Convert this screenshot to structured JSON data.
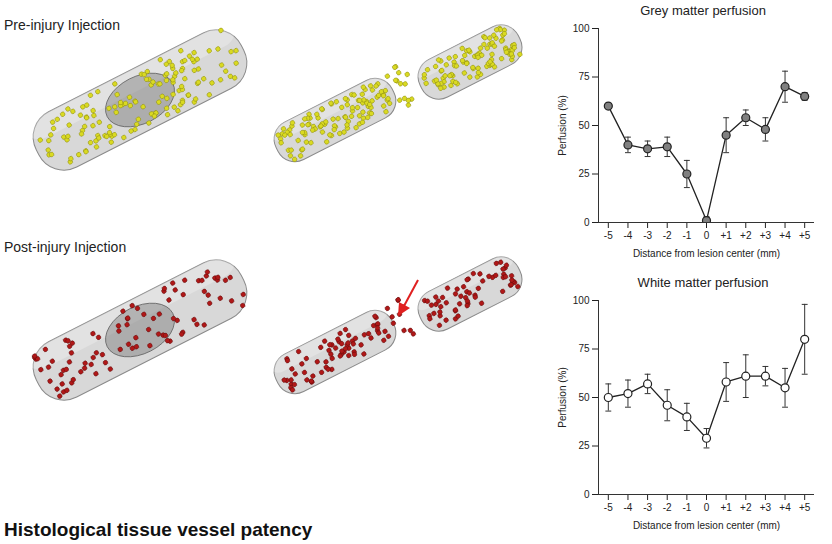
{
  "chart_data": [
    {
      "type": "line",
      "title": "Grey matter perfusion",
      "x_label": "Distance from lesion center (mm)",
      "y_label": "Perfusion (%)",
      "x": [
        -5,
        -4,
        -3,
        -2,
        -1,
        0,
        1,
        2,
        3,
        4,
        5
      ],
      "values": [
        60,
        40,
        38,
        39,
        25,
        1,
        45,
        54,
        48,
        70,
        65
      ],
      "errors": [
        1,
        4,
        4,
        5,
        7,
        2,
        9,
        4,
        6,
        8,
        2
      ],
      "color": "#808080",
      "marker": "circle",
      "xlim": [
        -5.5,
        5.5
      ],
      "xticks": [
        -5,
        -4,
        -3,
        -2,
        -1,
        0,
        {
          "value": 1,
          "label": "+1"
        },
        {
          "value": 2,
          "label": "+2"
        },
        {
          "value": 3,
          "label": "+3"
        },
        {
          "value": 4,
          "label": "+4"
        },
        {
          "value": 5,
          "label": "+5"
        }
      ],
      "ylim": [
        0,
        100
      ],
      "yticks": [
        0,
        25,
        50,
        75,
        100
      ]
    },
    {
      "type": "line",
      "title": "White matter perfusion",
      "x_label": "Distance from lesion center (mm)",
      "y_label": "Perfusion (%)",
      "x": [
        -5,
        -4,
        -3,
        -2,
        -1,
        0,
        1,
        2,
        3,
        4,
        5
      ],
      "values": [
        50,
        52,
        57,
        46,
        40,
        29,
        58,
        61,
        61,
        55,
        80
      ],
      "errors": [
        7,
        7,
        5,
        8,
        7,
        5,
        10,
        11,
        5,
        10,
        18
      ],
      "color": "#ffffff",
      "marker": "circle",
      "xlim": [
        -5.5,
        5.5
      ],
      "xticks": [
        -5,
        -4,
        -3,
        -2,
        -1,
        0,
        {
          "value": 1,
          "label": "+1"
        },
        {
          "value": 2,
          "label": "+2"
        },
        {
          "value": 3,
          "label": "+3"
        },
        {
          "value": 4,
          "label": "+4"
        },
        {
          "value": 5,
          "label": "+5"
        }
      ],
      "ylim": [
        0,
        100
      ],
      "yticks": [
        0,
        25,
        50,
        75,
        100
      ]
    }
  ],
  "figure": {
    "image_labels": [
      "Pre-injury Injection",
      "Post-injury Injection"
    ],
    "section_title": "Histological tissue vessel patency"
  }
}
